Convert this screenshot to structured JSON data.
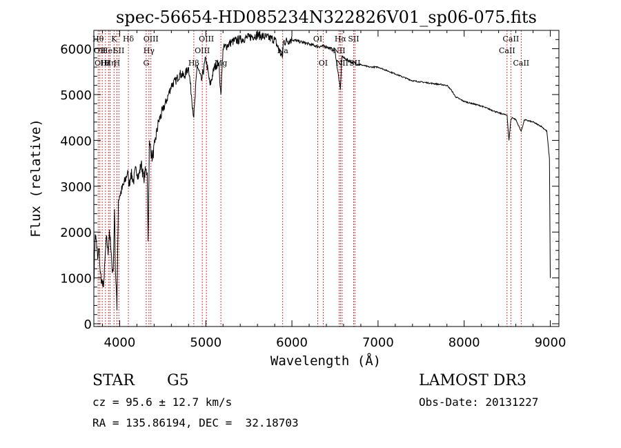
{
  "chart_data": {
    "type": "line",
    "title": "spec-56654-HD085234N322826V01_sp06-075.fits",
    "xlabel": "Wavelength (Å)",
    "ylabel": "Flux (relative)",
    "xlim": [
      3700,
      9100
    ],
    "ylim": [
      -60,
      6400
    ],
    "x_ticks": [
      4000,
      5000,
      6000,
      7000,
      8000,
      9000
    ],
    "y_ticks": [
      0,
      1000,
      2000,
      3000,
      4000,
      5000,
      6000
    ],
    "series": [
      {
        "name": "flux",
        "x": [
          3700,
          3715,
          3730,
          3745,
          3760,
          3775,
          3790,
          3805,
          3820,
          3835,
          3850,
          3865,
          3880,
          3895,
          3910,
          3925,
          3940,
          3950,
          3960,
          3968,
          3975,
          3985,
          4000,
          4030,
          4060,
          4090,
          4101,
          4110,
          4130,
          4160,
          4190,
          4220,
          4250,
          4280,
          4300,
          4320,
          4330,
          4340,
          4345,
          4350,
          4380,
          4410,
          4450,
          4500,
          4550,
          4600,
          4650,
          4700,
          4750,
          4800,
          4861,
          4900,
          4950,
          5000,
          5050,
          5100,
          5150,
          5175,
          5200,
          5300,
          5400,
          5500,
          5600,
          5700,
          5800,
          5890,
          5900,
          6000,
          6100,
          6200,
          6300,
          6400,
          6500,
          6563,
          6580,
          6600,
          6700,
          6800,
          6900,
          7000,
          7200,
          7400,
          7600,
          7800,
          7850,
          7900,
          8000,
          8200,
          8400,
          8498,
          8520,
          8542,
          8560,
          8600,
          8662,
          8700,
          8800,
          8900,
          8960,
          8990,
          9000
        ],
        "values": [
          900,
          1950,
          1800,
          1400,
          1650,
          1100,
          950,
          800,
          1000,
          1600,
          1900,
          1500,
          2050,
          1700,
          1250,
          1150,
          2500,
          1200,
          800,
          300,
          1300,
          2700,
          2800,
          2950,
          3100,
          3300,
          3200,
          3000,
          3300,
          3100,
          3400,
          3200,
          3500,
          3150,
          3350,
          3300,
          1800,
          3200,
          4000,
          3900,
          3600,
          3950,
          4400,
          4650,
          4900,
          5200,
          5300,
          5450,
          5400,
          5600,
          4500,
          5650,
          5300,
          5800,
          5200,
          5600,
          5700,
          5000,
          6000,
          6150,
          6200,
          6250,
          6300,
          6250,
          6200,
          5800,
          6150,
          6200,
          6150,
          6100,
          6050,
          6050,
          5950,
          5100,
          5850,
          5800,
          5700,
          5650,
          5600,
          5600,
          5450,
          5300,
          5250,
          5200,
          5100,
          4950,
          4850,
          4750,
          4600,
          4550,
          4000,
          4450,
          4500,
          4450,
          4200,
          4450,
          4400,
          4300,
          4200,
          3600,
          1000
        ]
      }
    ],
    "lines": [
      {
        "wl": 3750,
        "label": "Hθ",
        "row": 0
      },
      {
        "wl": 3770,
        "label": "OII",
        "row": 1
      },
      {
        "wl": 3797,
        "label": "OIII",
        "row": 2
      },
      {
        "wl": 3835,
        "label": "Hε",
        "row": 2
      },
      {
        "wl": 3870,
        "label": "HeI",
        "row": 1
      },
      {
        "wl": 3889,
        "label": "Hη",
        "row": 2
      },
      {
        "wl": 3934,
        "label": "K",
        "row": 0
      },
      {
        "wl": 3968,
        "label": "H",
        "row": 2
      },
      {
        "wl": 3990,
        "label": "SII",
        "row": 1
      },
      {
        "wl": 4101,
        "label": "Hδ",
        "row": 0
      },
      {
        "wl": 4308,
        "label": "G",
        "row": 2
      },
      {
        "wl": 4340,
        "label": "Hγ",
        "row": 1
      },
      {
        "wl": 4363,
        "label": "OIII",
        "row": 0
      },
      {
        "wl": 4861,
        "label": "Hβ",
        "row": 2
      },
      {
        "wl": 4959,
        "label": "OIII",
        "row": 1
      },
      {
        "wl": 5007,
        "label": "OIII",
        "row": 0
      },
      {
        "wl": 5175,
        "label": "Mg",
        "row": 2
      },
      {
        "wl": 5893,
        "label": "Na",
        "row": 1
      },
      {
        "wl": 6300,
        "label": "OI",
        "row": 0
      },
      {
        "wl": 6363,
        "label": "OI",
        "row": 2
      },
      {
        "wl": 6548,
        "label": "NII",
        "row": 1
      },
      {
        "wl": 6563,
        "label": "Hα",
        "row": 0
      },
      {
        "wl": 6583,
        "label": "NII",
        "row": 2
      },
      {
        "wl": 6716,
        "label": "SII",
        "row": 0
      },
      {
        "wl": 6731,
        "label": "SII",
        "row": 2
      },
      {
        "wl": 8498,
        "label": "CaII",
        "row": 1
      },
      {
        "wl": 8542,
        "label": "CaII",
        "row": 0
      },
      {
        "wl": 8662,
        "label": "CaII",
        "row": 2
      }
    ],
    "line_color": "#cc0000",
    "grid": false,
    "legend": "none"
  },
  "info": {
    "object_class": "STAR",
    "subclass": "G5",
    "survey": "LAMOST DR3",
    "cz": "cz = 95.6 ± 12.7 km/s",
    "obs_date": "Obs-Date: 20131227",
    "radec": "RA = 135.86194, DEC =  32.18703"
  }
}
